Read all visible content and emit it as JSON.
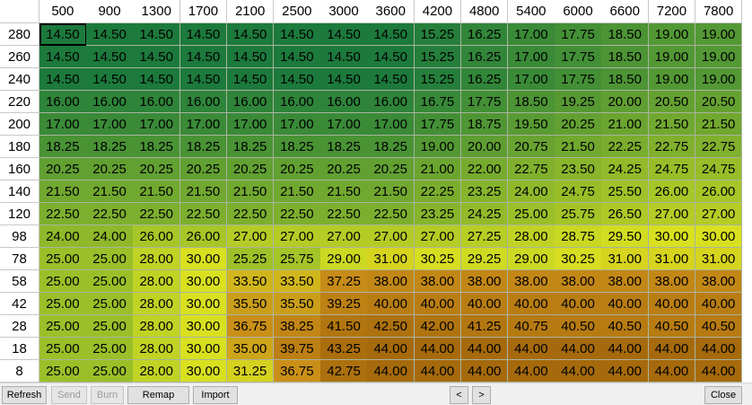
{
  "table": {
    "columns": [
      "500",
      "900",
      "1300",
      "1700",
      "2100",
      "2500",
      "3000",
      "3600",
      "4200",
      "4800",
      "5400",
      "6000",
      "6600",
      "7200",
      "7800"
    ],
    "rows": [
      "280",
      "260",
      "240",
      "220",
      "200",
      "180",
      "160",
      "140",
      "120",
      "98",
      "78",
      "58",
      "42",
      "28",
      "18",
      "8"
    ],
    "values": [
      [
        "14.50",
        "14.50",
        "14.50",
        "14.50",
        "14.50",
        "14.50",
        "14.50",
        "14.50",
        "15.25",
        "16.25",
        "17.00",
        "17.75",
        "18.50",
        "19.00",
        "19.00"
      ],
      [
        "14.50",
        "14.50",
        "14.50",
        "14.50",
        "14.50",
        "14.50",
        "14.50",
        "14.50",
        "15.25",
        "16.25",
        "17.00",
        "17.75",
        "18.50",
        "19.00",
        "19.00"
      ],
      [
        "14.50",
        "14.50",
        "14.50",
        "14.50",
        "14.50",
        "14.50",
        "14.50",
        "14.50",
        "15.25",
        "16.25",
        "17.00",
        "17.75",
        "18.50",
        "19.00",
        "19.00"
      ],
      [
        "16.00",
        "16.00",
        "16.00",
        "16.00",
        "16.00",
        "16.00",
        "16.00",
        "16.00",
        "16.75",
        "17.75",
        "18.50",
        "19.25",
        "20.00",
        "20.50",
        "20.50"
      ],
      [
        "17.00",
        "17.00",
        "17.00",
        "17.00",
        "17.00",
        "17.00",
        "17.00",
        "17.00",
        "17.75",
        "18.75",
        "19.50",
        "20.25",
        "21.00",
        "21.50",
        "21.50"
      ],
      [
        "18.25",
        "18.25",
        "18.25",
        "18.25",
        "18.25",
        "18.25",
        "18.25",
        "18.25",
        "19.00",
        "20.00",
        "20.75",
        "21.50",
        "22.25",
        "22.75",
        "22.75"
      ],
      [
        "20.25",
        "20.25",
        "20.25",
        "20.25",
        "20.25",
        "20.25",
        "20.25",
        "20.25",
        "21.00",
        "22.00",
        "22.75",
        "23.50",
        "24.25",
        "24.75",
        "24.75"
      ],
      [
        "21.50",
        "21.50",
        "21.50",
        "21.50",
        "21.50",
        "21.50",
        "21.50",
        "21.50",
        "22.25",
        "23.25",
        "24.00",
        "24.75",
        "25.50",
        "26.00",
        "26.00"
      ],
      [
        "22.50",
        "22.50",
        "22.50",
        "22.50",
        "22.50",
        "22.50",
        "22.50",
        "22.50",
        "23.25",
        "24.25",
        "25.00",
        "25.75",
        "26.50",
        "27.00",
        "27.00"
      ],
      [
        "24.00",
        "24.00",
        "26.00",
        "26.00",
        "27.00",
        "27.00",
        "27.00",
        "27.00",
        "27.00",
        "27.25",
        "28.00",
        "28.75",
        "29.50",
        "30.00",
        "30.00"
      ],
      [
        "25.00",
        "25.00",
        "28.00",
        "30.00",
        "25.25",
        "25.75",
        "29.00",
        "31.00",
        "30.25",
        "29.25",
        "29.00",
        "30.25",
        "31.00",
        "31.00",
        "31.00"
      ],
      [
        "25.00",
        "25.00",
        "28.00",
        "30.00",
        "33.50",
        "33.50",
        "37.25",
        "38.00",
        "38.00",
        "38.00",
        "38.00",
        "38.00",
        "38.00",
        "38.00",
        "38.00"
      ],
      [
        "25.00",
        "25.00",
        "28.00",
        "30.00",
        "35.50",
        "35.50",
        "39.25",
        "40.00",
        "40.00",
        "40.00",
        "40.00",
        "40.00",
        "40.00",
        "40.00",
        "40.00"
      ],
      [
        "25.00",
        "25.00",
        "28.00",
        "30.00",
        "36.75",
        "38.25",
        "41.50",
        "42.50",
        "42.00",
        "41.25",
        "40.75",
        "40.50",
        "40.50",
        "40.50",
        "40.50"
      ],
      [
        "25.00",
        "25.00",
        "28.00",
        "30.00",
        "35.00",
        "39.75",
        "43.25",
        "44.00",
        "44.00",
        "44.00",
        "44.00",
        "44.00",
        "44.00",
        "44.00",
        "44.00"
      ],
      [
        "25.00",
        "25.00",
        "28.00",
        "30.00",
        "31.25",
        "36.75",
        "42.75",
        "44.00",
        "44.00",
        "44.00",
        "44.00",
        "44.00",
        "44.00",
        "44.00",
        "44.00"
      ]
    ],
    "selected_cell": [
      0,
      0
    ]
  },
  "toolbar": {
    "refresh": "Refresh",
    "send": "Send",
    "burn": "Burn",
    "remap": "Remap",
    "import": "Import",
    "prev": "<",
    "next": ">",
    "close": "Close"
  },
  "colors": {
    "low": "#1c7a3c",
    "mid": "#d8e020",
    "high": "#a66a0c"
  }
}
